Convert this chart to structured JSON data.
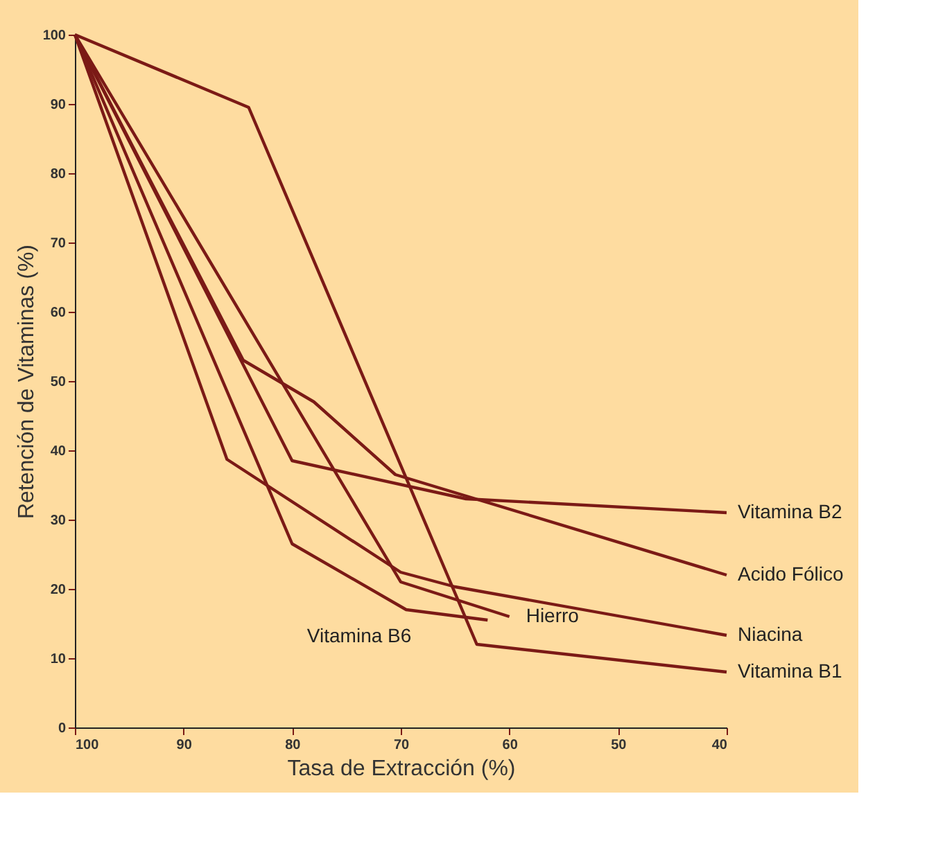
{
  "chart_data": {
    "type": "line",
    "xlabel": "Tasa de Extracción (%)",
    "ylabel": "Retención de Vitaminas (%)",
    "xlim": [
      100,
      40
    ],
    "xticks": [
      100,
      90,
      80,
      70,
      60,
      50,
      40
    ],
    "ylim": [
      0,
      100
    ],
    "yticks": [
      0,
      10,
      20,
      30,
      40,
      50,
      60,
      70,
      80,
      90,
      100
    ],
    "grid": false,
    "legend": false,
    "marker": "none",
    "line_style": "solid",
    "series": [
      {
        "name": "Vitamina B2",
        "color": "#7b1a16",
        "x": [
          100,
          80,
          64,
          40
        ],
        "values": [
          100,
          38.5,
          33,
          31
        ]
      },
      {
        "name": "Acido Fólico",
        "color": "#7b1a16",
        "x": [
          100,
          84.5,
          78,
          70.5,
          40
        ],
        "values": [
          100,
          53,
          47,
          36.5,
          22
        ]
      },
      {
        "name": "Niacina",
        "color": "#7b1a16",
        "x": [
          100,
          86,
          70,
          65,
          40
        ],
        "values": [
          100,
          38.7,
          22.4,
          20.3,
          13.3
        ]
      },
      {
        "name": "Vitamina B1",
        "color": "#7b1a16",
        "x": [
          100,
          84,
          63,
          40
        ],
        "values": [
          100,
          89.5,
          12,
          8
        ]
      },
      {
        "name": "Vitamina B6",
        "color": "#7b1a16",
        "x": [
          100,
          80,
          69.5,
          62
        ],
        "values": [
          100,
          26.5,
          17,
          15.5
        ]
      },
      {
        "name": "Hierro",
        "color": "#7b1a16",
        "x": [
          100,
          70,
          60
        ],
        "values": [
          100,
          21,
          16
        ]
      }
    ]
  }
}
